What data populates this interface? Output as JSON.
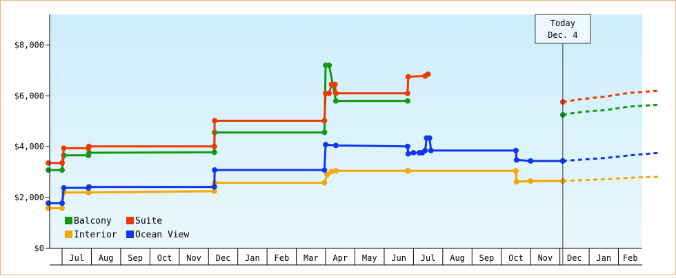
{
  "chart_data": {
    "type": "line",
    "y_axis": {
      "min": 0,
      "max": 9200,
      "ticks": [
        {
          "value": 0,
          "label": "$0"
        },
        {
          "value": 2000,
          "label": "$2,000"
        },
        {
          "value": 4000,
          "label": "$4,000"
        },
        {
          "value": 6000,
          "label": "$6,000"
        },
        {
          "value": 8000,
          "label": "$8,000"
        }
      ]
    },
    "x_axis": {
      "start_month": "Jun",
      "months": [
        "Jul",
        "Aug",
        "Sep",
        "Oct",
        "Nov",
        "Dec",
        "Jan",
        "Feb",
        "Mar",
        "Apr",
        "May",
        "Jun",
        "Jul",
        "Aug",
        "Sep",
        "Oct",
        "Nov",
        "Dec",
        "Jan",
        "Feb"
      ]
    },
    "grid": false,
    "background": {
      "top": "#cdeefb",
      "bottom": "#eaf7fd"
    },
    "today": {
      "line1": "Today",
      "line2": "Dec. 4",
      "month": 17.1
    },
    "legend": {
      "placement": "bottom-left",
      "items": [
        {
          "label": "Balcony",
          "color": "#119911"
        },
        {
          "label": "Suite",
          "color": "#ee3a00"
        },
        {
          "label": "Interior",
          "color": "#f7a500"
        },
        {
          "label": "Ocean View",
          "color": "#0f36f0"
        }
      ]
    },
    "series": [
      {
        "name": "Balcony",
        "color": "#119911",
        "points": [
          [
            -0.47,
            3080
          ],
          [
            0,
            3080
          ],
          [
            0.06,
            3660
          ],
          [
            0.9,
            3660
          ],
          [
            0.92,
            3760
          ],
          [
            5.2,
            3780
          ],
          [
            5.21,
            4560
          ],
          [
            8.96,
            4560
          ],
          [
            9.0,
            7200
          ],
          [
            9.12,
            7200
          ],
          [
            9.35,
            5800
          ],
          [
            11.8,
            5800
          ]
        ],
        "forecast": [
          [
            17.1,
            5250
          ],
          [
            17.6,
            5350
          ],
          [
            18.6,
            5450
          ],
          [
            19.4,
            5580
          ],
          [
            20.4,
            5650
          ]
        ]
      },
      {
        "name": "Suite",
        "color": "#ee3a00",
        "points": [
          [
            -0.47,
            3360
          ],
          [
            0,
            3360
          ],
          [
            0.06,
            3940
          ],
          [
            0.9,
            3940
          ],
          [
            0.92,
            4010
          ],
          [
            5.2,
            4010
          ],
          [
            5.21,
            5020
          ],
          [
            8.96,
            5020
          ],
          [
            9.0,
            6100
          ],
          [
            9.12,
            6100
          ],
          [
            9.2,
            6450
          ],
          [
            9.32,
            6450
          ],
          [
            9.35,
            6100
          ],
          [
            11.8,
            6100
          ],
          [
            11.82,
            6750
          ],
          [
            12.4,
            6780
          ],
          [
            12.5,
            6850
          ]
        ],
        "forecast": [
          [
            17.1,
            5760
          ],
          [
            17.6,
            5850
          ],
          [
            18.6,
            5980
          ],
          [
            19.4,
            6120
          ],
          [
            20.4,
            6200
          ]
        ]
      },
      {
        "name": "Interior",
        "color": "#f7a500",
        "points": [
          [
            -0.47,
            1580
          ],
          [
            0,
            1580
          ],
          [
            0.06,
            2200
          ],
          [
            0.9,
            2200
          ],
          [
            0.92,
            2200
          ],
          [
            5.2,
            2250
          ],
          [
            5.21,
            2580
          ],
          [
            8.96,
            2580
          ],
          [
            9.05,
            2900
          ],
          [
            9.2,
            3020
          ],
          [
            9.35,
            3050
          ],
          [
            11.8,
            3050
          ],
          [
            11.82,
            3050
          ],
          [
            15.5,
            3050
          ],
          [
            15.52,
            2620
          ],
          [
            16.0,
            2650
          ],
          [
            17.1,
            2650
          ]
        ],
        "forecast": [
          [
            17.1,
            2650
          ],
          [
            17.6,
            2680
          ],
          [
            18.6,
            2720
          ],
          [
            19.4,
            2780
          ],
          [
            20.4,
            2820
          ]
        ]
      },
      {
        "name": "Ocean View",
        "color": "#0f36f0",
        "points": [
          [
            -0.47,
            1780
          ],
          [
            0,
            1780
          ],
          [
            0.06,
            2380
          ],
          [
            0.9,
            2380
          ],
          [
            0.92,
            2420
          ],
          [
            5.2,
            2420
          ],
          [
            5.21,
            3080
          ],
          [
            8.96,
            3080
          ],
          [
            9.0,
            4080
          ],
          [
            9.35,
            4050
          ],
          [
            11.8,
            4010
          ],
          [
            11.82,
            3720
          ],
          [
            12.0,
            3760
          ],
          [
            12.2,
            3760
          ],
          [
            12.3,
            3760
          ],
          [
            12.4,
            3850
          ],
          [
            12.45,
            4340
          ],
          [
            12.55,
            4340
          ],
          [
            12.6,
            3850
          ],
          [
            15.5,
            3850
          ],
          [
            15.52,
            3480
          ],
          [
            16.0,
            3440
          ],
          [
            17.1,
            3440
          ]
        ],
        "forecast": [
          [
            17.1,
            3440
          ],
          [
            17.6,
            3480
          ],
          [
            18.6,
            3560
          ],
          [
            19.4,
            3660
          ],
          [
            20.4,
            3760
          ]
        ]
      }
    ]
  }
}
